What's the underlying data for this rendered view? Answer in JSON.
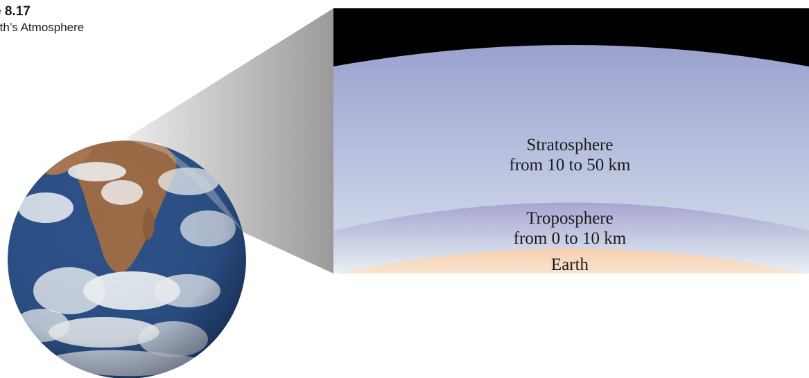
{
  "figure": {
    "number": "e 8.17",
    "caption": "rth’s Atmosphere"
  },
  "layers": {
    "stratosphere": {
      "name": "Stratosphere",
      "range": "from 10 to 50 km"
    },
    "troposphere": {
      "name": "Troposphere",
      "range": "from 0 to 10 km"
    },
    "earth": {
      "name": "Earth"
    }
  },
  "colors": {
    "space": "#000000",
    "stratosphere_top": "#9aa1cf",
    "stratosphere_bottom": "#d8e2ee",
    "troposphere_top": "#a6a5d0",
    "troposphere_bottom": "#e8f1f5",
    "earth_surface": "#f6d2b4",
    "ocean": "#2a4f86",
    "land": "#9a6a44",
    "clouds": "#f2f4f6"
  },
  "icons": {
    "globe": "earth-globe-icon"
  }
}
